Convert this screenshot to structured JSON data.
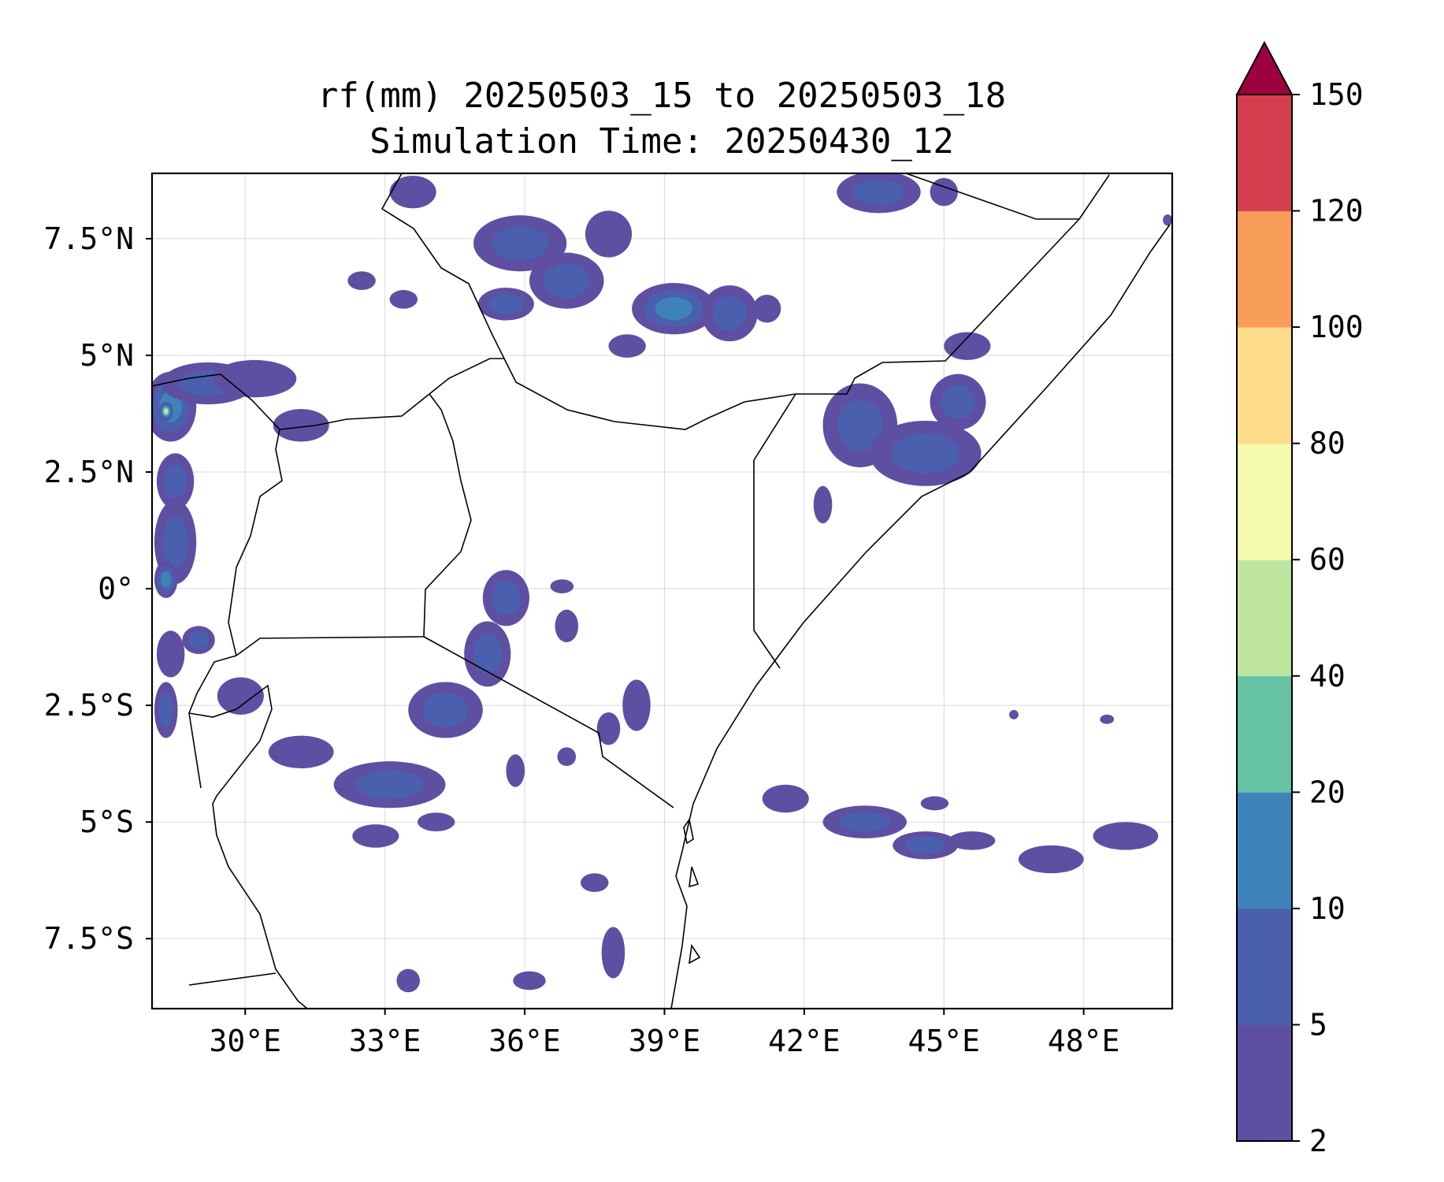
{
  "title": {
    "line1": "rf(mm) 20250503_15 to 20250503_18",
    "line2": "Simulation Time: 20250430_12"
  },
  "map": {
    "lon_range": [
      28.0,
      49.9
    ],
    "lat_range": [
      -9.0,
      8.9
    ],
    "x_ticks": [
      {
        "value": 30,
        "label": "30°E"
      },
      {
        "value": 33,
        "label": "33°E"
      },
      {
        "value": 36,
        "label": "36°E"
      },
      {
        "value": 39,
        "label": "39°E"
      },
      {
        "value": 42,
        "label": "42°E"
      },
      {
        "value": 45,
        "label": "45°E"
      },
      {
        "value": 48,
        "label": "48°E"
      }
    ],
    "y_ticks": [
      {
        "value": 7.5,
        "label": "7.5°N"
      },
      {
        "value": 5,
        "label": "5°N"
      },
      {
        "value": 2.5,
        "label": "2.5°N"
      },
      {
        "value": 0,
        "label": "0°"
      },
      {
        "value": -2.5,
        "label": "2.5°S"
      },
      {
        "value": -5,
        "label": "5°S"
      },
      {
        "value": -7.5,
        "label": "7.5°S"
      }
    ],
    "grid": true,
    "rain_cells": [
      {
        "lon": 28.4,
        "lat": 3.9,
        "rx": 0.55,
        "ry": 0.75,
        "level": 3
      },
      {
        "lon": 28.3,
        "lat": 3.8,
        "rx": 0.15,
        "ry": 0.2,
        "level": 5
      },
      {
        "lon": 29.2,
        "lat": 4.4,
        "rx": 1.0,
        "ry": 0.45,
        "level": 2
      },
      {
        "lon": 30.2,
        "lat": 4.5,
        "rx": 0.9,
        "ry": 0.4,
        "level": 1
      },
      {
        "lon": 31.2,
        "lat": 3.5,
        "rx": 0.6,
        "ry": 0.35,
        "level": 1
      },
      {
        "lon": 28.5,
        "lat": 2.3,
        "rx": 0.4,
        "ry": 0.6,
        "level": 2
      },
      {
        "lon": 28.5,
        "lat": 1.0,
        "rx": 0.45,
        "ry": 0.9,
        "level": 2
      },
      {
        "lon": 28.3,
        "lat": 0.2,
        "rx": 0.25,
        "ry": 0.4,
        "level": 3
      },
      {
        "lon": 28.4,
        "lat": -1.4,
        "rx": 0.3,
        "ry": 0.5,
        "level": 1
      },
      {
        "lon": 28.3,
        "lat": -2.6,
        "rx": 0.25,
        "ry": 0.6,
        "level": 2
      },
      {
        "lon": 29.0,
        "lat": -1.1,
        "rx": 0.35,
        "ry": 0.3,
        "level": 2
      },
      {
        "lon": 29.9,
        "lat": -2.3,
        "rx": 0.5,
        "ry": 0.4,
        "level": 1
      },
      {
        "lon": 31.2,
        "lat": -3.5,
        "rx": 0.7,
        "ry": 0.35,
        "level": 1
      },
      {
        "lon": 33.1,
        "lat": -4.2,
        "rx": 1.2,
        "ry": 0.5,
        "level": 2
      },
      {
        "lon": 34.3,
        "lat": -2.6,
        "rx": 0.8,
        "ry": 0.6,
        "level": 2
      },
      {
        "lon": 35.2,
        "lat": -1.4,
        "rx": 0.5,
        "ry": 0.7,
        "level": 2
      },
      {
        "lon": 35.6,
        "lat": -0.2,
        "rx": 0.5,
        "ry": 0.6,
        "level": 2
      },
      {
        "lon": 36.9,
        "lat": -0.8,
        "rx": 0.25,
        "ry": 0.35,
        "level": 1
      },
      {
        "lon": 36.8,
        "lat": 0.05,
        "rx": 0.25,
        "ry": 0.15,
        "level": 1
      },
      {
        "lon": 38.4,
        "lat": -2.5,
        "rx": 0.3,
        "ry": 0.55,
        "level": 1
      },
      {
        "lon": 37.8,
        "lat": -3.0,
        "rx": 0.25,
        "ry": 0.35,
        "level": 1
      },
      {
        "lon": 35.8,
        "lat": -3.9,
        "rx": 0.2,
        "ry": 0.35,
        "level": 1
      },
      {
        "lon": 36.9,
        "lat": -3.6,
        "rx": 0.2,
        "ry": 0.2,
        "level": 1
      },
      {
        "lon": 32.8,
        "lat": -5.3,
        "rx": 0.5,
        "ry": 0.25,
        "level": 1
      },
      {
        "lon": 34.1,
        "lat": -5.0,
        "rx": 0.4,
        "ry": 0.2,
        "level": 1
      },
      {
        "lon": 33.5,
        "lat": -8.4,
        "rx": 0.25,
        "ry": 0.25,
        "level": 1
      },
      {
        "lon": 37.5,
        "lat": -6.3,
        "rx": 0.3,
        "ry": 0.2,
        "level": 1
      },
      {
        "lon": 37.9,
        "lat": -7.8,
        "rx": 0.25,
        "ry": 0.55,
        "level": 1
      },
      {
        "lon": 36.1,
        "lat": -8.4,
        "rx": 0.35,
        "ry": 0.2,
        "level": 1
      },
      {
        "lon": 35.9,
        "lat": 7.4,
        "rx": 1.0,
        "ry": 0.6,
        "level": 2
      },
      {
        "lon": 36.9,
        "lat": 6.6,
        "rx": 0.8,
        "ry": 0.6,
        "level": 2
      },
      {
        "lon": 35.6,
        "lat": 6.1,
        "rx": 0.6,
        "ry": 0.35,
        "level": 2
      },
      {
        "lon": 37.8,
        "lat": 7.6,
        "rx": 0.5,
        "ry": 0.5,
        "level": 1
      },
      {
        "lon": 39.2,
        "lat": 6.0,
        "rx": 0.9,
        "ry": 0.55,
        "level": 3
      },
      {
        "lon": 40.4,
        "lat": 5.9,
        "rx": 0.6,
        "ry": 0.6,
        "level": 2
      },
      {
        "lon": 38.2,
        "lat": 5.2,
        "rx": 0.4,
        "ry": 0.25,
        "level": 1
      },
      {
        "lon": 41.2,
        "lat": 6.0,
        "rx": 0.3,
        "ry": 0.3,
        "level": 1
      },
      {
        "lon": 33.6,
        "lat": 8.5,
        "rx": 0.5,
        "ry": 0.35,
        "level": 1
      },
      {
        "lon": 33.4,
        "lat": 6.2,
        "rx": 0.3,
        "ry": 0.2,
        "level": 1
      },
      {
        "lon": 32.5,
        "lat": 6.6,
        "rx": 0.3,
        "ry": 0.2,
        "level": 1
      },
      {
        "lon": 43.6,
        "lat": 8.5,
        "rx": 0.9,
        "ry": 0.45,
        "level": 2
      },
      {
        "lon": 45.0,
        "lat": 8.5,
        "rx": 0.3,
        "ry": 0.3,
        "level": 1
      },
      {
        "lon": 43.2,
        "lat": 3.5,
        "rx": 0.8,
        "ry": 0.9,
        "level": 2
      },
      {
        "lon": 44.6,
        "lat": 2.9,
        "rx": 1.2,
        "ry": 0.7,
        "level": 2
      },
      {
        "lon": 45.3,
        "lat": 4.0,
        "rx": 0.6,
        "ry": 0.6,
        "level": 2
      },
      {
        "lon": 45.5,
        "lat": 5.2,
        "rx": 0.5,
        "ry": 0.3,
        "level": 1
      },
      {
        "lon": 42.4,
        "lat": 1.8,
        "rx": 0.2,
        "ry": 0.4,
        "level": 1
      },
      {
        "lon": 49.8,
        "lat": 7.9,
        "rx": 0.1,
        "ry": 0.12,
        "level": 2
      },
      {
        "lon": 41.6,
        "lat": -4.5,
        "rx": 0.5,
        "ry": 0.3,
        "level": 1
      },
      {
        "lon": 43.3,
        "lat": -5.0,
        "rx": 0.9,
        "ry": 0.35,
        "level": 2
      },
      {
        "lon": 44.6,
        "lat": -5.5,
        "rx": 0.7,
        "ry": 0.3,
        "level": 2
      },
      {
        "lon": 45.6,
        "lat": -5.4,
        "rx": 0.5,
        "ry": 0.2,
        "level": 1
      },
      {
        "lon": 47.3,
        "lat": -5.8,
        "rx": 0.7,
        "ry": 0.3,
        "level": 1
      },
      {
        "lon": 48.9,
        "lat": -5.3,
        "rx": 0.7,
        "ry": 0.3,
        "level": 1
      },
      {
        "lon": 44.8,
        "lat": -4.6,
        "rx": 0.3,
        "ry": 0.15,
        "level": 1
      },
      {
        "lon": 46.5,
        "lat": -2.7,
        "rx": 0.1,
        "ry": 0.1,
        "level": 1
      },
      {
        "lon": 48.5,
        "lat": -2.8,
        "rx": 0.15,
        "ry": 0.1,
        "level": 1
      }
    ]
  },
  "colorbar": {
    "colors": [
      "#5e4fa2",
      "#4a5fad",
      "#3d82b9",
      "#65c2a5",
      "#bde59f",
      "#f4faad",
      "#fcdc8b",
      "#f89d59",
      "#d53e4f",
      "#9e0142"
    ],
    "extend_color": "#9e0142",
    "levels": [
      {
        "value": 2,
        "label": "2"
      },
      {
        "value": 5,
        "label": "5"
      },
      {
        "value": 10,
        "label": "10"
      },
      {
        "value": 20,
        "label": "20"
      },
      {
        "value": 40,
        "label": "40"
      },
      {
        "value": 60,
        "label": "60"
      },
      {
        "value": 80,
        "label": "80"
      },
      {
        "value": 100,
        "label": "100"
      },
      {
        "value": 120,
        "label": "120"
      },
      {
        "value": 150,
        "label": "150"
      }
    ]
  }
}
